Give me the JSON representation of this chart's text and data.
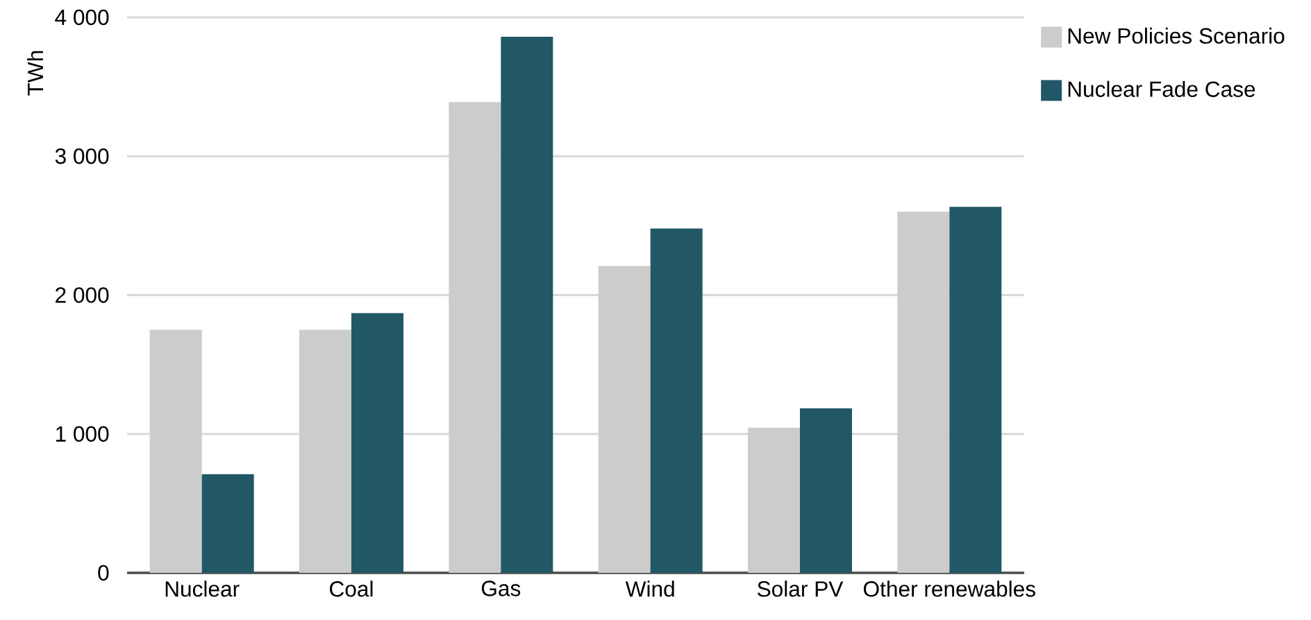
{
  "chart_data": {
    "type": "bar",
    "ylabel": "TWh",
    "categories": [
      "Nuclear",
      "Coal",
      "Gas",
      "Wind",
      "Solar PV",
      "Other renewables"
    ],
    "series": [
      {
        "name": "New Policies Scenario",
        "color": "#cccccc",
        "values": [
          1750,
          1750,
          3390,
          2210,
          1045,
          2600
        ]
      },
      {
        "name": "Nuclear Fade Case",
        "color": "#225866",
        "values": [
          710,
          1870,
          3860,
          2480,
          1185,
          2635
        ]
      }
    ],
    "ylim": [
      0,
      4000
    ],
    "yticks": [
      0,
      {
        "value": 1000,
        "label": "1 000"
      },
      {
        "value": 2000,
        "label": "2 000"
      },
      {
        "value": 3000,
        "label": "3 000"
      },
      {
        "value": 4000,
        "label": "4 000"
      }
    ],
    "grid": "y",
    "legend": "top right"
  }
}
